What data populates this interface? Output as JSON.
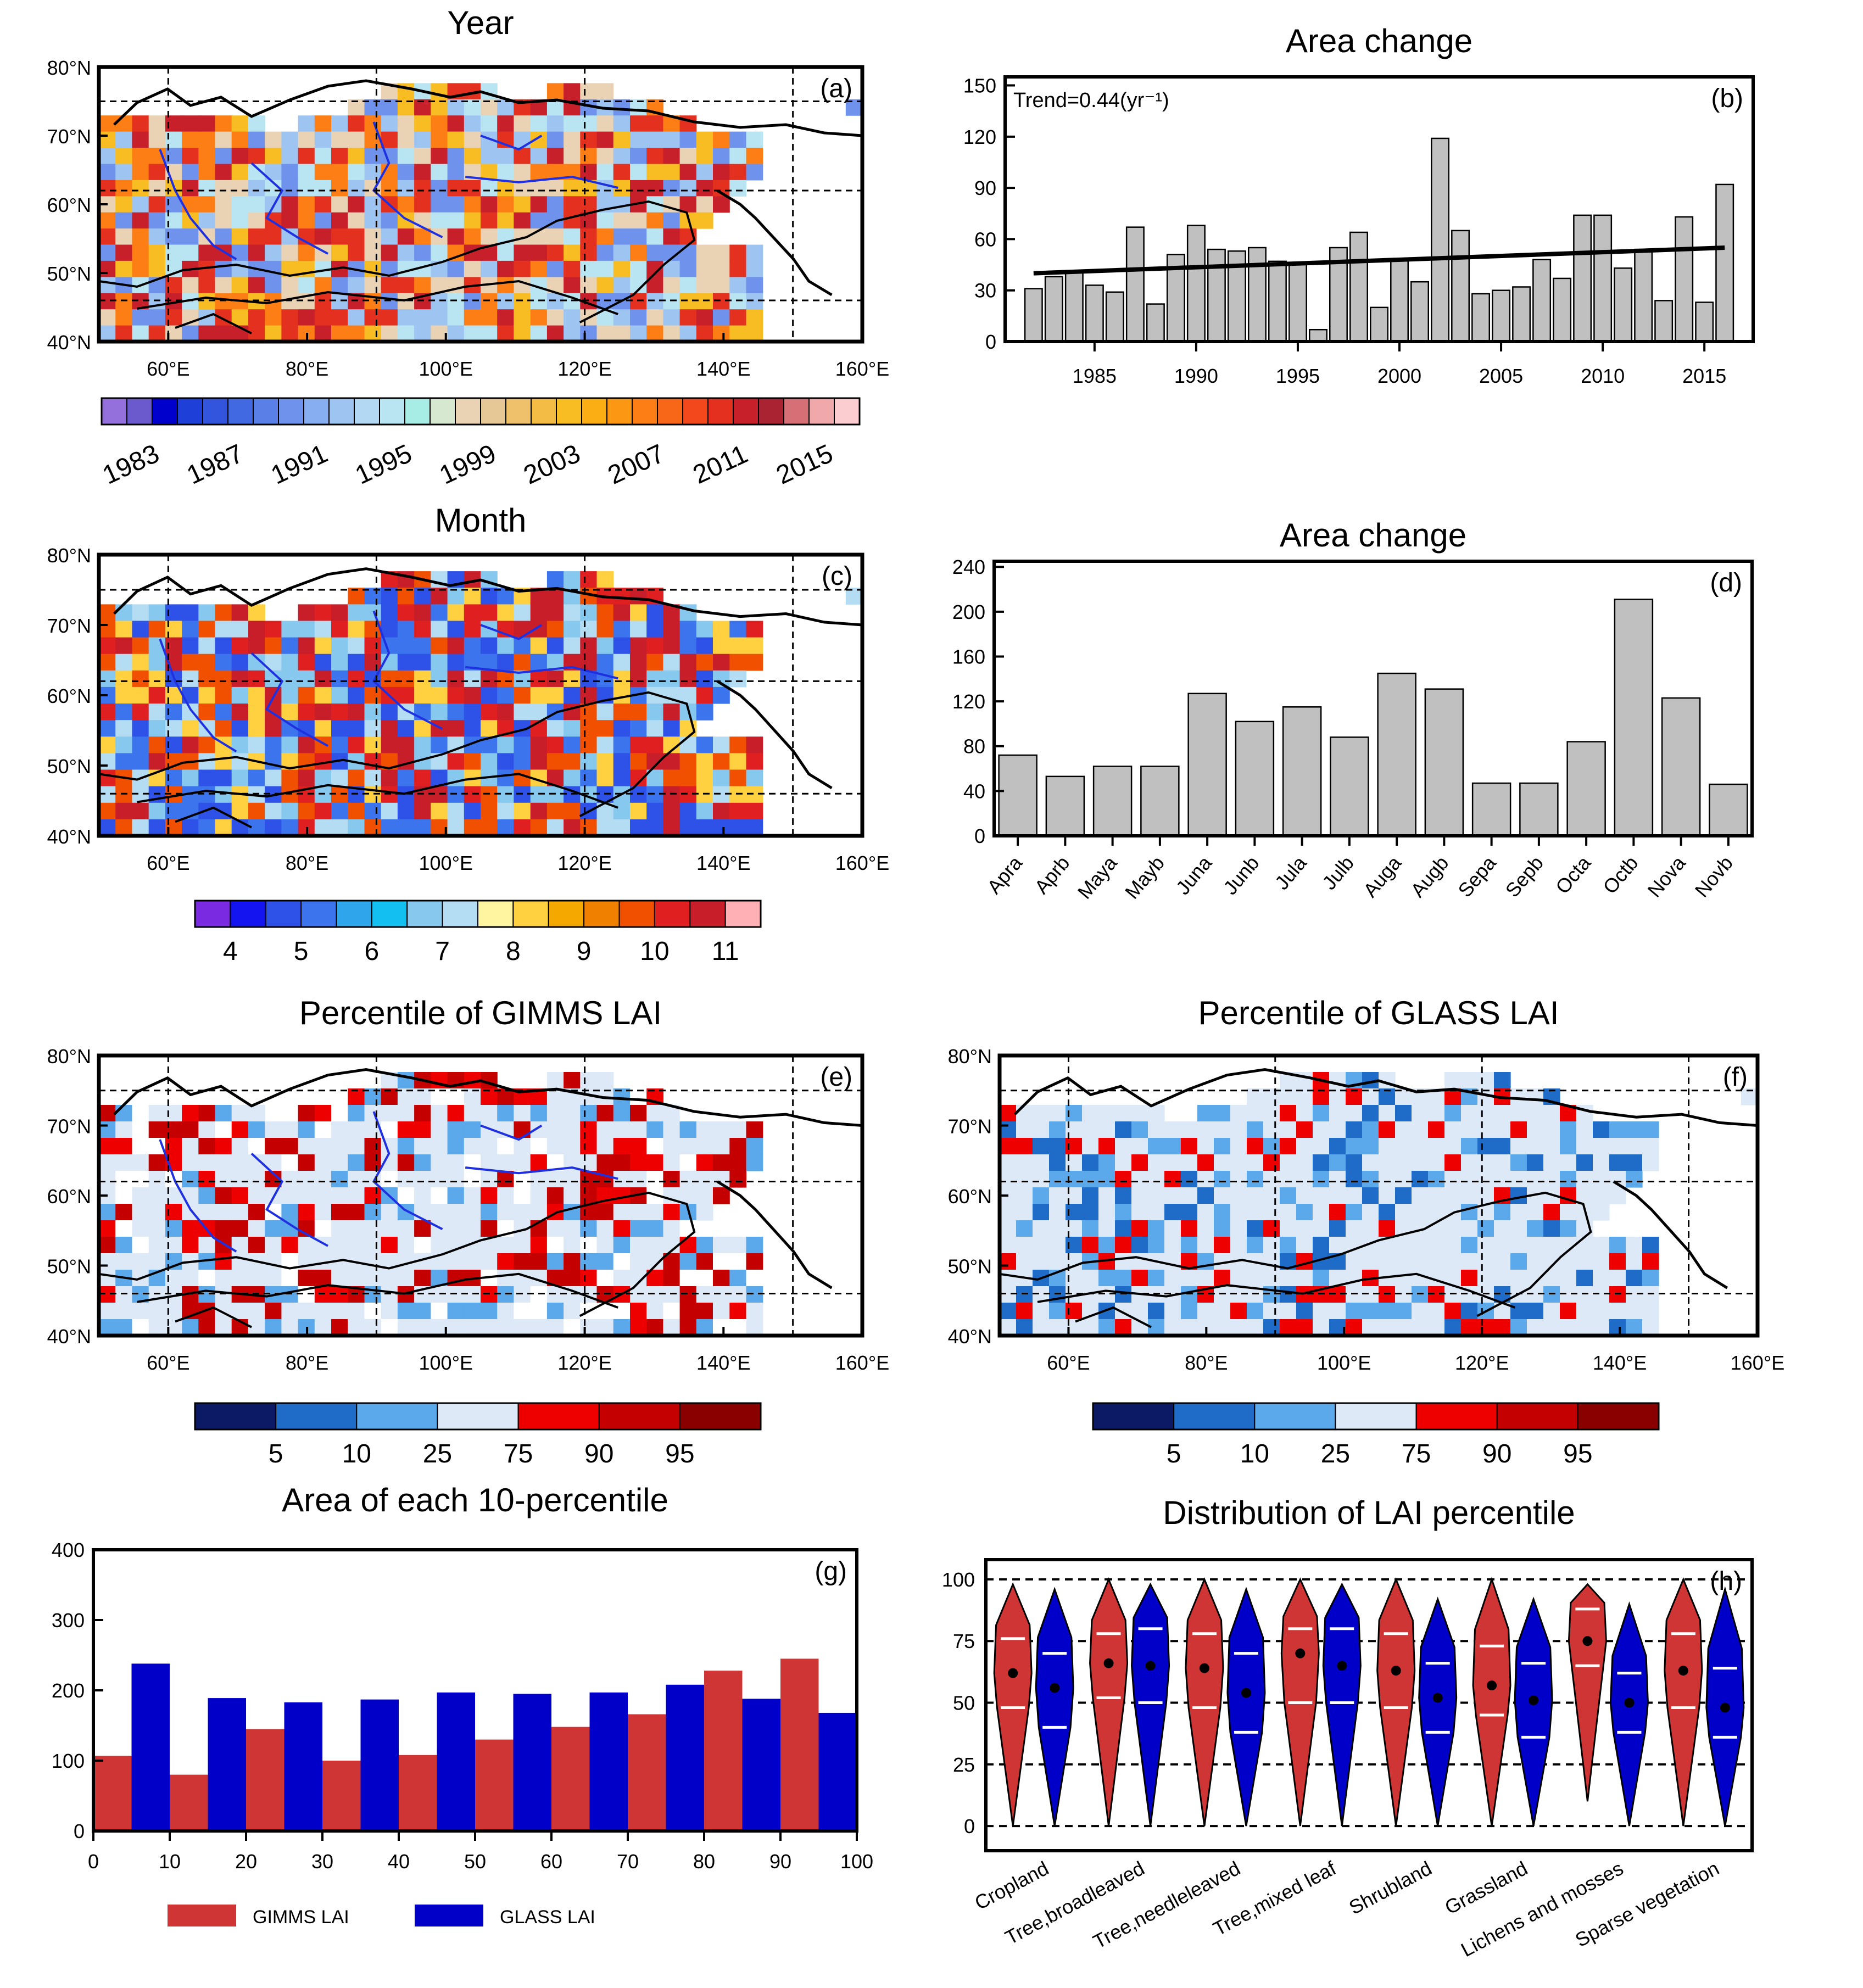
{
  "colors": {
    "bar_gray": "#c0c0c0",
    "gimms": "#d03535",
    "glass": "#0000c8",
    "violin_red": "#d03535",
    "violin_blue": "#0000c8",
    "coast": "#000000",
    "river": "#1e30e0"
  },
  "maps": [
    {
      "id": "a",
      "title": "Year",
      "label": "(a)",
      "lat_labels": [
        "80°N",
        "70°N",
        "60°N",
        "50°N",
        "40°N"
      ],
      "lon_labels": [
        "60°E",
        "80°E",
        "100°E",
        "120°E",
        "140°E",
        "160°E"
      ],
      "colorbar": {
        "colors": [
          "#9370db",
          "#6a5acd",
          "#0000cd",
          "#1e3fd8",
          "#3355dd",
          "#4169e1",
          "#5a7fe6",
          "#6f93ec",
          "#87aef0",
          "#9ec5f2",
          "#b2d8f4",
          "#b9e5f3",
          "#a8ece6",
          "#d6e8d0",
          "#e9d3b4",
          "#e6c796",
          "#eec16a",
          "#f3bd45",
          "#f8bd22",
          "#fbae14",
          "#fc9714",
          "#fd7e14",
          "#f86717",
          "#f2481c",
          "#e4301f",
          "#c8202a",
          "#a92333",
          "#d76f76",
          "#f0a8aa",
          "#fccdd0"
        ],
        "labels": [
          "1983",
          "1987",
          "1991",
          "1995",
          "1999",
          "2003",
          "2007",
          "2011",
          "2015"
        ]
      },
      "palette": [
        "#6f93ec",
        "#9ec5f2",
        "#b9e5f3",
        "#e9d3b4",
        "#f8bd22",
        "#fd7e14",
        "#e4301f",
        "#c8202a"
      ]
    },
    {
      "id": "c",
      "title": "Month",
      "label": "(c)",
      "lat_labels": [
        "80°N",
        "70°N",
        "60°N",
        "50°N",
        "40°N"
      ],
      "lon_labels": [
        "60°E",
        "80°E",
        "100°E",
        "120°E",
        "140°E",
        "160°E"
      ],
      "colorbar": {
        "colors": [
          "#7a2ae0",
          "#1414f0",
          "#2e52e8",
          "#3c74ee",
          "#2fa6ec",
          "#12bff0",
          "#87c8ee",
          "#b4dcf2",
          "#fff5a0",
          "#ffd040",
          "#f4a800",
          "#f08000",
          "#f05000",
          "#e02020",
          "#c81e2a",
          "#ffb0b4"
        ],
        "labels": [
          "4",
          "5",
          "6",
          "7",
          "8",
          "9",
          "10",
          "11"
        ]
      },
      "palette": [
        "#2e52e8",
        "#3c74ee",
        "#87c8ee",
        "#b4dcf2",
        "#ffd040",
        "#f05000",
        "#e02020",
        "#c81e2a"
      ]
    },
    {
      "id": "e",
      "title": "Percentile of GIMMS LAI",
      "label": "(e)",
      "lat_labels": [
        "80°N",
        "70°N",
        "60°N",
        "50°N",
        "40°N"
      ],
      "lon_labels": [
        "60°E",
        "80°E",
        "100°E",
        "120°E",
        "140°E",
        "160°E"
      ],
      "colorbar": {
        "colors": [
          "#0c1a66",
          "#1e6cc8",
          "#5ba8ea",
          "#dde9f6",
          "#ee0000",
          "#c40000",
          "#8a0000"
        ],
        "labels": [
          "5",
          "10",
          "25",
          "75",
          "90",
          "95"
        ]
      },
      "palette": [
        "#dde9f6",
        "#dde9f6",
        "#dde9f6",
        "#ee0000",
        "#c40000",
        "#dde9f6",
        "#5ba8ea",
        "#ffffff"
      ]
    },
    {
      "id": "f",
      "title": "Percentile of GLASS LAI",
      "label": "(f)",
      "lat_labels": [
        "80°N",
        "70°N",
        "60°N",
        "50°N",
        "40°N"
      ],
      "lon_labels": [
        "60°E",
        "80°E",
        "100°E",
        "120°E",
        "140°E",
        "160°E"
      ],
      "colorbar": {
        "colors": [
          "#0c1a66",
          "#1e6cc8",
          "#5ba8ea",
          "#dde9f6",
          "#ee0000",
          "#c40000",
          "#8a0000"
        ],
        "labels": [
          "5",
          "10",
          "25",
          "75",
          "90",
          "95"
        ]
      },
      "palette": [
        "#dde9f6",
        "#dde9f6",
        "#dde9f6",
        "#dde9f6",
        "#ee0000",
        "#dde9f6",
        "#5ba8ea",
        "#1e6cc8"
      ]
    }
  ],
  "chart_data": [
    {
      "id": "b",
      "type": "bar",
      "title": "Area change",
      "label": "(b)",
      "annotation": "Trend=0.44(yr⁻¹)",
      "x": [
        1982,
        1983,
        1984,
        1985,
        1986,
        1987,
        1988,
        1989,
        1990,
        1991,
        1992,
        1993,
        1994,
        1995,
        1996,
        1997,
        1998,
        1999,
        2000,
        2001,
        2002,
        2003,
        2004,
        2005,
        2006,
        2007,
        2008,
        2009,
        2010,
        2011,
        2012,
        2013,
        2014,
        2015,
        2016
      ],
      "values": [
        31,
        38,
        41,
        33,
        29,
        67,
        22,
        51,
        68,
        54,
        53,
        55,
        47,
        46,
        7,
        55,
        64,
        20,
        48,
        35,
        119,
        65,
        28,
        30,
        32,
        48,
        37,
        74,
        74,
        43,
        54,
        24,
        73,
        23,
        92
      ],
      "xticks": [
        1985,
        1990,
        1995,
        2000,
        2005,
        2010,
        2015
      ],
      "xlim": [
        1980.6,
        2017.4
      ],
      "yticks": [
        0,
        30,
        60,
        90,
        120,
        150
      ],
      "ylim": [
        0,
        155
      ],
      "trend_line": {
        "x": [
          1982,
          2016
        ],
        "y": [
          40,
          55
        ]
      }
    },
    {
      "id": "d",
      "type": "bar",
      "title": "Area change",
      "label": "(d)",
      "categories": [
        "Apra",
        "Aprb",
        "Maya",
        "Mayb",
        "Juna",
        "Junb",
        "Jula",
        "Julb",
        "Auga",
        "Augb",
        "Sepa",
        "Sepb",
        "Octa",
        "Octb",
        "Nova",
        "Novb"
      ],
      "values": [
        72,
        53,
        62,
        62,
        127,
        102,
        115,
        88,
        145,
        131,
        47,
        47,
        84,
        211,
        123,
        46
      ],
      "yticks": [
        0,
        40,
        80,
        120,
        160,
        200,
        240
      ],
      "ylim": [
        0,
        245
      ]
    },
    {
      "id": "g",
      "type": "bar",
      "title": "Area of each 10-percentile",
      "label": "(g)",
      "xticks": [
        0,
        10,
        20,
        30,
        40,
        50,
        60,
        70,
        80,
        90,
        100
      ],
      "xlim": [
        0,
        100
      ],
      "yticks": [
        0,
        100,
        200,
        300,
        400
      ],
      "ylim": [
        0,
        400
      ],
      "bins": [
        0,
        10,
        20,
        30,
        40,
        50,
        60,
        70,
        80,
        90
      ],
      "series": [
        {
          "name": "GIMMS LAI",
          "values": [
            107,
            80,
            145,
            100,
            108,
            130,
            148,
            166,
            228,
            245
          ]
        },
        {
          "name": "GLASS LAI",
          "values": [
            238,
            189,
            183,
            187,
            197,
            195,
            197,
            208,
            188,
            168
          ]
        }
      ]
    },
    {
      "id": "h",
      "type": "violin",
      "title": "Distribution of LAI percentile",
      "label": "(h)",
      "categories": [
        "Cropland",
        "Tree,broadleaved",
        "Tree,needleleaved",
        "Tree,mixed leaf",
        "Shrubland",
        "Grassland",
        "Lichens and mosses",
        "Sparse vegetation"
      ],
      "yticks": [
        0,
        25,
        50,
        75,
        100
      ],
      "ylim": [
        -10,
        108
      ],
      "series": [
        {
          "name": "GIMMS LAI",
          "min": [
            0,
            0,
            0,
            0,
            0,
            0,
            10,
            0
          ],
          "max": [
            98,
            100,
            100,
            100,
            100,
            100,
            98,
            100
          ],
          "median": [
            62,
            66,
            64,
            70,
            63,
            57,
            75,
            63
          ],
          "q1": [
            48,
            52,
            48,
            50,
            48,
            45,
            65,
            48
          ],
          "q3": [
            76,
            78,
            78,
            80,
            78,
            73,
            88,
            78
          ]
        },
        {
          "name": "GLASS LAI",
          "min": [
            0,
            0,
            0,
            0,
            0,
            0,
            0,
            0
          ],
          "max": [
            96,
            98,
            96,
            98,
            92,
            92,
            90,
            96
          ],
          "median": [
            56,
            65,
            54,
            65,
            52,
            51,
            50,
            48
          ],
          "q1": [
            40,
            50,
            38,
            50,
            38,
            36,
            38,
            36
          ],
          "q3": [
            70,
            80,
            70,
            80,
            66,
            66,
            62,
            64
          ]
        }
      ]
    }
  ]
}
